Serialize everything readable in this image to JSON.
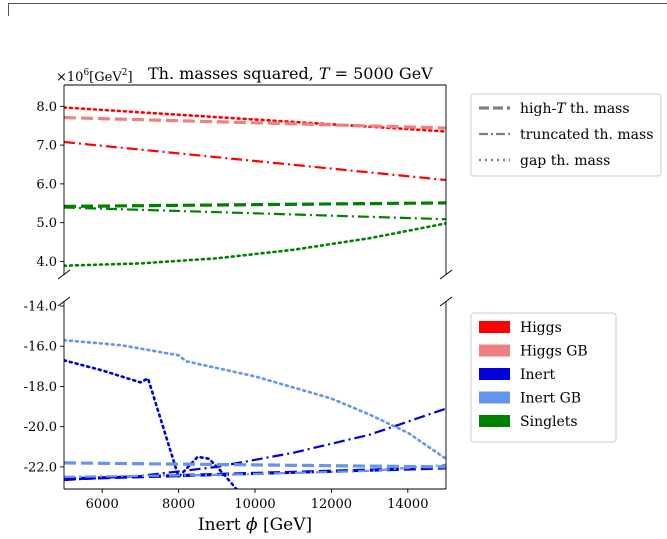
{
  "chart_data": [
    {
      "type": "line",
      "title_prefix": "Th. masses squared, ",
      "title_T": "T",
      "title_suffix": " = 5000 GeV",
      "scale_label": "×10",
      "scale_exp": "6",
      "scale_unit": "[GeV",
      "scale_unit_exp": "2",
      "scale_unit_close": "]",
      "xlim": [
        5000,
        15000
      ],
      "ylim": [
        3.65,
        8.55
      ],
      "y_ticks": [
        4.0,
        5.0,
        6.0,
        7.0,
        8.0
      ],
      "y_tick_labels": [
        "4.0",
        "5.0",
        "6.0",
        "7.0",
        "8.0"
      ],
      "grid": false,
      "legend_placement": "outside-right",
      "legend": [
        {
          "label_pre": "high-",
          "label_italic": "T",
          "label_post": " th. mass",
          "style": "dashed"
        },
        {
          "label_pre": "truncated th. mass",
          "label_italic": "",
          "label_post": "",
          "style": "dashdot"
        },
        {
          "label_pre": "gap th. mass",
          "label_italic": "",
          "label_post": "",
          "style": "dotted"
        }
      ],
      "series": [
        {
          "color": "#ff0000",
          "style": "dashdot",
          "x": [
            5000,
            15000
          ],
          "y": [
            7.08,
            6.1
          ]
        },
        {
          "color": "#ff0000",
          "style": "dotted",
          "x": [
            5000,
            15000
          ],
          "y": [
            7.97,
            7.35
          ]
        },
        {
          "color": "#f08080",
          "style": "dashed",
          "x": [
            5000,
            15000
          ],
          "y": [
            7.71,
            7.44
          ]
        },
        {
          "color": "#008000",
          "style": "dashed",
          "x": [
            5000,
            15000
          ],
          "y": [
            5.42,
            5.51
          ]
        },
        {
          "color": "#008000",
          "style": "dashdot",
          "x": [
            5000,
            10000,
            15000
          ],
          "y": [
            5.39,
            5.24,
            5.09
          ]
        },
        {
          "color": "#008000",
          "style": "dotted",
          "x": [
            5000,
            7000,
            9000,
            11000,
            13000,
            15000
          ],
          "y": [
            3.89,
            3.95,
            4.08,
            4.3,
            4.6,
            4.98
          ]
        }
      ]
    },
    {
      "type": "line",
      "xlabel_pre": "Inert ",
      "xlabel_sym": "ϕ",
      "xlabel_post": " [GeV]",
      "xlim": [
        5000,
        15000
      ],
      "ylim": [
        -23.1,
        -13.8
      ],
      "x_ticks": [
        6000,
        8000,
        10000,
        12000,
        14000
      ],
      "x_tick_labels": [
        "6000",
        "8000",
        "10000",
        "12000",
        "14000"
      ],
      "y_ticks": [
        -22.0,
        -20.0,
        -18.0,
        -16.0,
        -14.0
      ],
      "y_tick_labels": [
        "-22.0",
        "-20.0",
        "-18.0",
        "-16.0",
        "-14.0"
      ],
      "grid": false,
      "legend_placement": "outside-right",
      "legend": [
        {
          "label": "Higgs",
          "color": "#ff0000"
        },
        {
          "label": "Higgs GB",
          "color": "#f08080"
        },
        {
          "label": "Inert",
          "color": "#0000dd"
        },
        {
          "label": "Inert GB",
          "color": "#6495ed"
        },
        {
          "label": "Singlets",
          "color": "#008000"
        }
      ],
      "series": [
        {
          "color": "#0000dd",
          "style": "dashdot",
          "x": [
            5000,
            7000,
            9000,
            11000,
            13000,
            15000
          ],
          "y": [
            -22.65,
            -22.45,
            -22.0,
            -21.3,
            -20.4,
            -19.1
          ]
        },
        {
          "color": "#0000dd",
          "style": "dotted",
          "x": [
            5000,
            6000,
            7000,
            7200,
            8000,
            8500,
            8800,
            9200,
            9600
          ],
          "y": [
            -16.7,
            -17.2,
            -17.8,
            -17.6,
            -22.5,
            -21.5,
            -21.6,
            -22.4,
            -23.3
          ]
        },
        {
          "color": "#0000dd",
          "style": "dashed",
          "x": [
            5000,
            15000
          ],
          "y": [
            -22.6,
            -22.05
          ]
        },
        {
          "color": "#6495ed",
          "style": "dashed",
          "x": [
            5000,
            15000
          ],
          "y": [
            -21.8,
            -22.0
          ]
        },
        {
          "color": "#6495ed",
          "style": "dashdot",
          "x": [
            5000,
            9000,
            13000,
            15000
          ],
          "y": [
            -22.5,
            -22.4,
            -22.2,
            -21.9
          ]
        },
        {
          "color": "#6495ed",
          "style": "dotted",
          "x": [
            5000,
            6500,
            8000,
            8200,
            10000,
            12000,
            13000,
            14000,
            15000
          ],
          "y": [
            -15.7,
            -15.95,
            -16.45,
            -16.75,
            -17.5,
            -18.6,
            -19.4,
            -20.3,
            -21.6
          ]
        }
      ]
    }
  ]
}
